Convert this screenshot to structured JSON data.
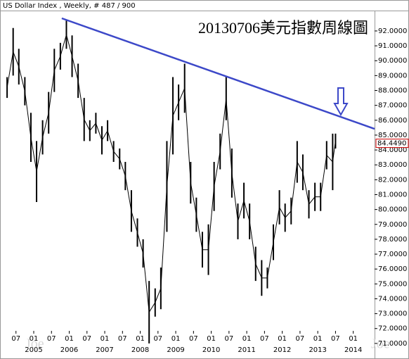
{
  "chart_data": {
    "type": "hilo",
    "header": "US Dollar Index , Weekly, # 487 / 900",
    "title": "20130706美元指數周線圖",
    "watermark": "Joe",
    "color": "#000000",
    "x": [
      2004.25,
      2004.42,
      2004.58,
      2004.75,
      2004.92,
      2005.08,
      2005.25,
      2005.42,
      2005.58,
      2005.75,
      2005.92,
      2006.08,
      2006.25,
      2006.42,
      2006.58,
      2006.75,
      2006.92,
      2007.08,
      2007.25,
      2007.42,
      2007.58,
      2007.75,
      2007.92,
      2008.08,
      2008.25,
      2008.42,
      2008.58,
      2008.75,
      2008.92,
      2009.08,
      2009.25,
      2009.42,
      2009.58,
      2009.75,
      2009.92,
      2010.08,
      2010.25,
      2010.42,
      2010.58,
      2010.75,
      2010.92,
      2011.08,
      2011.25,
      2011.42,
      2011.58,
      2011.75,
      2011.92,
      2012.08,
      2012.25,
      2012.42,
      2012.58,
      2012.75,
      2012.92,
      2013.08,
      2013.25,
      2013.42,
      2013.5
    ],
    "high": [
      88.9,
      92.2,
      90.8,
      88.9,
      86.5,
      84.6,
      86.0,
      87.9,
      90.8,
      91.2,
      92.7,
      91.7,
      89.8,
      87.5,
      86.0,
      86.5,
      85.6,
      86.0,
      84.6,
      84.1,
      83.2,
      81.3,
      79.4,
      78.0,
      75.2,
      74.7,
      76.1,
      84.6,
      88.9,
      88.4,
      89.8,
      83.2,
      80.8,
      78.5,
      79.0,
      83.2,
      85.1,
      88.9,
      84.1,
      80.4,
      81.8,
      80.4,
      77.5,
      76.6,
      76.1,
      79.0,
      81.3,
      80.4,
      80.8,
      84.6,
      83.7,
      81.3,
      81.8,
      81.8,
      84.6,
      85.1,
      85.1
    ],
    "low": [
      87.5,
      89.0,
      88.4,
      87.0,
      83.2,
      80.5,
      83.7,
      85.1,
      87.9,
      89.4,
      90.8,
      88.9,
      87.5,
      84.6,
      84.6,
      85.1,
      83.7,
      84.6,
      83.2,
      82.7,
      81.3,
      78.5,
      77.5,
      76.1,
      71.0,
      72.8,
      73.3,
      78.5,
      83.7,
      86.0,
      86.5,
      80.4,
      78.5,
      76.1,
      75.6,
      79.9,
      82.7,
      86.0,
      80.8,
      78.0,
      79.4,
      78.0,
      75.2,
      74.2,
      74.7,
      76.6,
      79.0,
      78.5,
      79.0,
      81.8,
      81.3,
      79.4,
      79.9,
      79.9,
      82.7,
      81.3,
      84.1
    ],
    "last": {
      "value": 84.449,
      "label": "84.4490",
      "color": "#cc0000"
    },
    "trendline": {
      "color": "#3c48c8",
      "x": [
        2005.79,
        2014.6
      ],
      "y": [
        92.85,
        85.42
      ]
    },
    "arrow_color": "#3c48c8",
    "xlim": [
      2004.05,
      2014.6
    ],
    "ylim": [
      70.19,
      93.37
    ],
    "xticks": [
      {
        "value": 2004.5,
        "label": "07"
      },
      {
        "value": 2005,
        "label": "01"
      },
      {
        "value": 2005.5,
        "label": "07"
      },
      {
        "value": 2006,
        "label": "01"
      },
      {
        "value": 2006.5,
        "label": "07"
      },
      {
        "value": 2007,
        "label": "01"
      },
      {
        "value": 2007.5,
        "label": "07"
      },
      {
        "value": 2008,
        "label": "01"
      },
      {
        "value": 2008.5,
        "label": "07"
      },
      {
        "value": 2009,
        "label": "01"
      },
      {
        "value": 2009.5,
        "label": "07"
      },
      {
        "value": 2010,
        "label": "01"
      },
      {
        "value": 2010.5,
        "label": "07"
      },
      {
        "value": 2011,
        "label": "01"
      },
      {
        "value": 2011.5,
        "label": "07"
      },
      {
        "value": 2012,
        "label": "01"
      },
      {
        "value": 2012.5,
        "label": "07"
      },
      {
        "value": 2013,
        "label": "01"
      },
      {
        "value": 2013.5,
        "label": "07"
      },
      {
        "value": 2014,
        "label": "01"
      }
    ],
    "year_ticks": [
      2005,
      2006,
      2007,
      2008,
      2009,
      2010,
      2011,
      2012,
      2013,
      2014
    ],
    "yticks": [
      {
        "value": 71,
        "label": "71.0000"
      },
      {
        "value": 72,
        "label": "72.0000"
      },
      {
        "value": 73,
        "label": "73.0000"
      },
      {
        "value": 74,
        "label": "74.0000"
      },
      {
        "value": 75,
        "label": "75.0000"
      },
      {
        "value": 76,
        "label": "76.0000"
      },
      {
        "value": 77,
        "label": "77.0000"
      },
      {
        "value": 78,
        "label": "78.0000"
      },
      {
        "value": 79,
        "label": "79.0000"
      },
      {
        "value": 80,
        "label": "80.0000"
      },
      {
        "value": 81,
        "label": "81.0000"
      },
      {
        "value": 82,
        "label": "82.0000"
      },
      {
        "value": 83,
        "label": "83.0000"
      },
      {
        "value": 84,
        "label": "84.0000"
      },
      {
        "value": 85,
        "label": "85.0000"
      },
      {
        "value": 86,
        "label": "86.0000"
      },
      {
        "value": 87,
        "label": "87.0000"
      },
      {
        "value": 88,
        "label": "88.0000"
      },
      {
        "value": 89,
        "label": "89.0000"
      },
      {
        "value": 90,
        "label": "90.0000"
      },
      {
        "value": 91,
        "label": "91.0000"
      },
      {
        "value": 92,
        "label": "92.0000"
      }
    ]
  }
}
